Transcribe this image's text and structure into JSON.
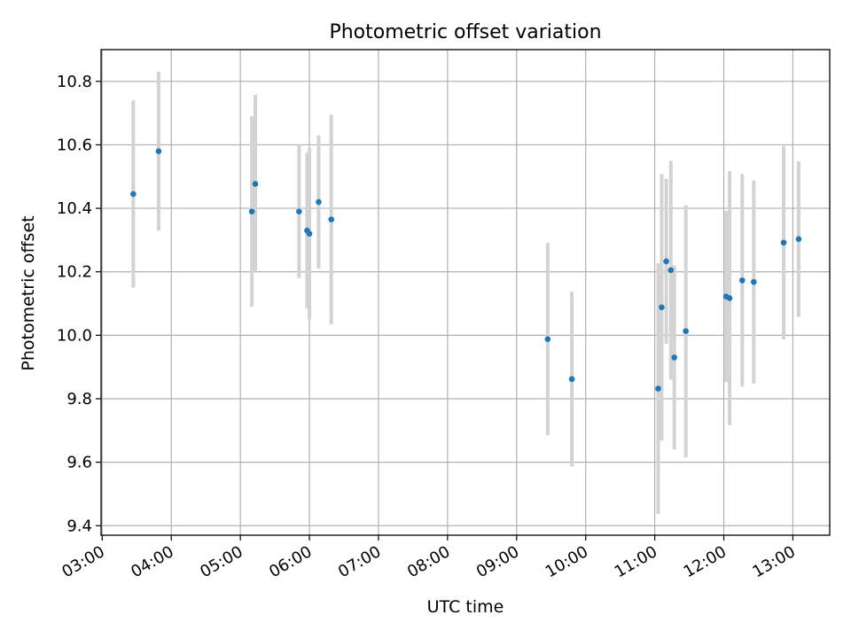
{
  "chart_data": {
    "type": "scatter",
    "title": "Photometric offset variation",
    "xlabel": "UTC time",
    "ylabel": "Photometric offset",
    "x_tick_labels": [
      "03:00",
      "04:00",
      "05:00",
      "06:00",
      "07:00",
      "08:00",
      "09:00",
      "10:00",
      "11:00",
      "12:00",
      "13:00"
    ],
    "y_tick_labels": [
      "9.4",
      "9.6",
      "9.8",
      "10.0",
      "10.2",
      "10.4",
      "10.6",
      "10.8"
    ],
    "xlim": [
      "02:59",
      "13:32"
    ],
    "ylim": [
      9.37,
      10.9
    ],
    "grid": true,
    "colors": {
      "point": "#1f77b4",
      "errorbar": "#d3d3d3",
      "grid": "#b0b0b0"
    },
    "series": [
      {
        "points": [
          {
            "x": "03:27",
            "y": 10.445,
            "err": 0.295
          },
          {
            "x": "03:49",
            "y": 10.58,
            "err": 0.25
          },
          {
            "x": "05:10",
            "y": 10.39,
            "err": 0.3
          },
          {
            "x": "05:13",
            "y": 10.477,
            "err": 0.28
          },
          {
            "x": "05:51",
            "y": 10.39,
            "err": 0.21
          },
          {
            "x": "05:58",
            "y": 10.33,
            "err": 0.245
          },
          {
            "x": "06:00",
            "y": 10.32,
            "err": 0.27
          },
          {
            "x": "06:08",
            "y": 10.42,
            "err": 0.21
          },
          {
            "x": "06:19",
            "y": 10.365,
            "err": 0.33
          },
          {
            "x": "09:27",
            "y": 9.988,
            "err": 0.303
          },
          {
            "x": "09:48",
            "y": 9.862,
            "err": 0.275
          },
          {
            "x": "11:03",
            "y": 9.832,
            "err": 0.395
          },
          {
            "x": "11:06",
            "y": 10.088,
            "err": 0.42
          },
          {
            "x": "11:10",
            "y": 10.233,
            "err": 0.26
          },
          {
            "x": "11:14",
            "y": 10.205,
            "err": 0.345
          },
          {
            "x": "11:17",
            "y": 9.93,
            "err": 0.29
          },
          {
            "x": "11:27",
            "y": 10.013,
            "err": 0.397
          },
          {
            "x": "12:02",
            "y": 10.122,
            "err": 0.27
          },
          {
            "x": "12:05",
            "y": 10.117,
            "err": 0.4
          },
          {
            "x": "12:16",
            "y": 10.173,
            "err": 0.335
          },
          {
            "x": "12:26",
            "y": 10.168,
            "err": 0.32
          },
          {
            "x": "12:52",
            "y": 10.292,
            "err": 0.305
          },
          {
            "x": "13:05",
            "y": 10.303,
            "err": 0.245
          }
        ]
      }
    ]
  }
}
